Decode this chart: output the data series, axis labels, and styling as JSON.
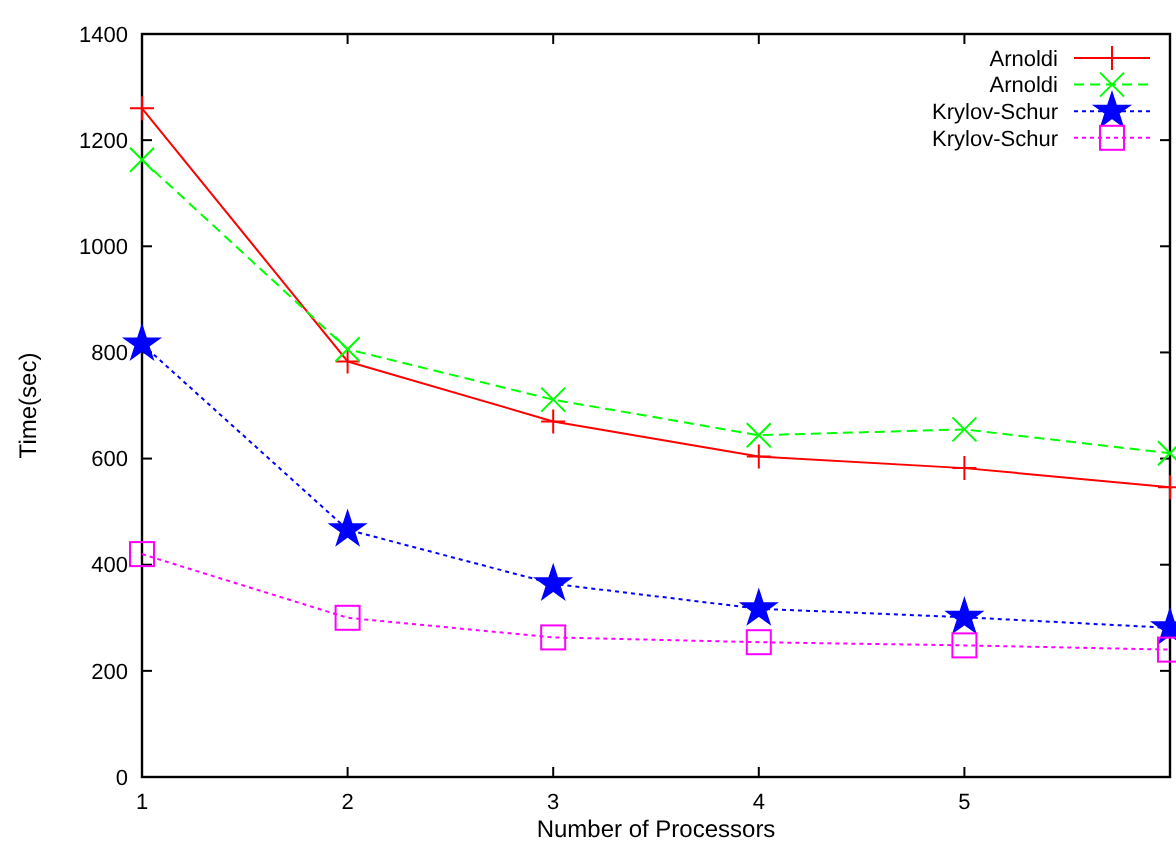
{
  "chart_data": {
    "type": "line",
    "xlabel": "Number of Processors",
    "ylabel": "Time(sec)",
    "x": [
      1,
      2,
      3,
      4,
      5,
      6
    ],
    "xlim": [
      1,
      6
    ],
    "xticks": [
      1,
      2,
      3,
      4,
      5
    ],
    "ylim": [
      0,
      1400
    ],
    "yticks": [
      0,
      200,
      400,
      600,
      800,
      1000,
      1200,
      1400
    ],
    "grid": false,
    "legend": "top right",
    "series": [
      {
        "name": "Arnoldi",
        "color": "#ff0000",
        "line_style": "solid",
        "marker": "cross",
        "values": [
          1260,
          783,
          670,
          604,
          582,
          546
        ]
      },
      {
        "name": "Arnoldi",
        "color": "#00ff00",
        "line_style": "dashed",
        "marker": "cross",
        "values": [
          1163,
          806,
          711,
          644,
          655,
          610
        ]
      },
      {
        "name": "Krylov-Schur",
        "color": "#0000ff",
        "line_style": "dotted",
        "marker": "star",
        "values": [
          816,
          466,
          364,
          317,
          301,
          281
        ]
      },
      {
        "name": "Krylov-Schur",
        "color": "#ff00ff",
        "line_style": "dotted",
        "marker": "square",
        "values": [
          420,
          300,
          263,
          254,
          248,
          240
        ]
      }
    ]
  }
}
